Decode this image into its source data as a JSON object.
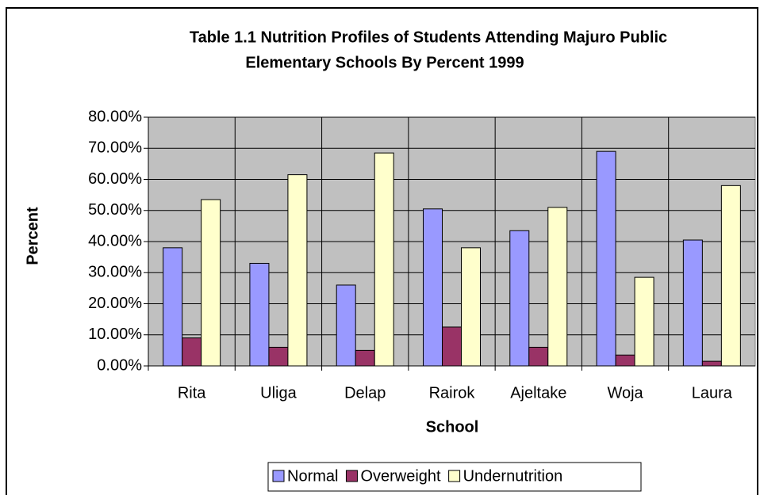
{
  "chart_data": {
    "type": "bar",
    "title": [
      "Table 1.1 Nutrition Profiles of Students Attending Majuro Public",
      "Elementary Schools By Percent 1999"
    ],
    "x_label": "School",
    "y_label": "Percent",
    "categories": [
      "Rita",
      "Uliga",
      "Delap",
      "Rairok",
      "Ajeltake",
      "Woja",
      "Laura"
    ],
    "series": [
      {
        "name": "Normal",
        "color": "#9999ff",
        "values": [
          38,
          33,
          26,
          50.5,
          43.5,
          69,
          40.5
        ]
      },
      {
        "name": "Overweight",
        "color": "#993366",
        "values": [
          9,
          6,
          5,
          12.5,
          6,
          3.5,
          1.5
        ]
      },
      {
        "name": "Undernutrition",
        "color": "#ffffcc",
        "values": [
          53.5,
          61.5,
          68.5,
          38,
          51,
          28.5,
          58
        ]
      }
    ],
    "ylim": [
      0,
      80
    ],
    "yticks": [
      {
        "value": 0,
        "label": "0.00%"
      },
      {
        "value": 10,
        "label": "10.00%"
      },
      {
        "value": 20,
        "label": "20.00%"
      },
      {
        "value": 30,
        "label": "30.00%"
      },
      {
        "value": 40,
        "label": "40.00%"
      },
      {
        "value": 50,
        "label": "50.00%"
      },
      {
        "value": 60,
        "label": "60.00%"
      },
      {
        "value": 70,
        "label": "70.00%"
      },
      {
        "value": 80,
        "label": "80.00%"
      }
    ],
    "grid": true,
    "plot_background": "#c0c0c0",
    "legend": "bottom"
  }
}
